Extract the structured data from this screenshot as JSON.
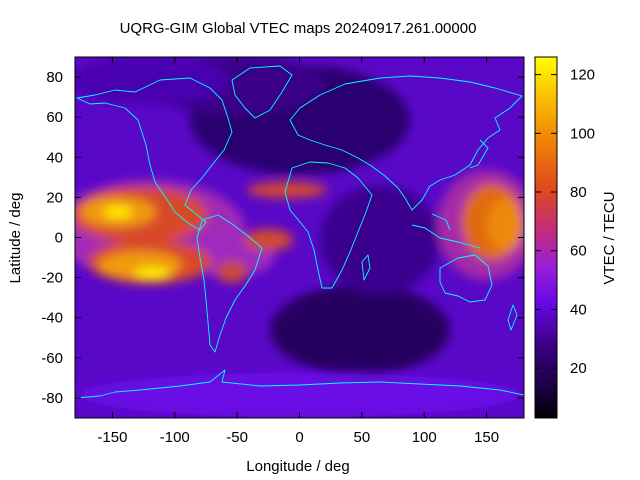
{
  "title": "UQRG-GIM Global VTEC maps 20240917.261.00000",
  "x_axis": {
    "label": "Longitude / deg",
    "range": [
      -180,
      180
    ],
    "ticks": [
      -150,
      -100,
      -50,
      0,
      50,
      100,
      150
    ],
    "tick_labels": [
      "-150",
      "-100",
      "-50",
      "0",
      "50",
      "100",
      "150"
    ]
  },
  "y_axis": {
    "label": "Latitude / deg",
    "range": [
      -90,
      90
    ],
    "ticks": [
      80,
      60,
      40,
      20,
      0,
      -20,
      -40,
      -60,
      -80
    ],
    "tick_labels": [
      "80",
      "60",
      "40",
      "20",
      "0",
      "-20",
      "-40",
      "-60",
      "-80"
    ]
  },
  "colorbar": {
    "label": "VTEC / TECU",
    "range": [
      3,
      126
    ],
    "ticks": [
      20,
      40,
      60,
      80,
      100,
      120
    ],
    "tick_labels": [
      "20",
      "40",
      "60",
      "80",
      "100",
      "120"
    ],
    "palette": [
      "#000000",
      "#3a0082",
      "#6a08e8",
      "#9b1fd6",
      "#c22c7a",
      "#e04a1c",
      "#f08a05",
      "#fac400",
      "#ffff00"
    ]
  },
  "coastline_color": "#00ffff"
}
